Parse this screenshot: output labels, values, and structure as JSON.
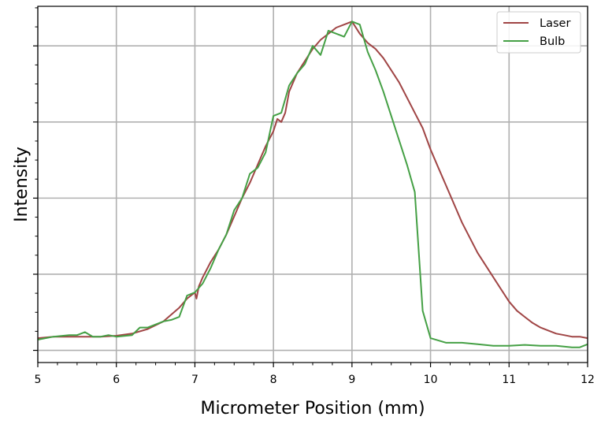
{
  "chart_data": {
    "type": "line",
    "title": "",
    "xlabel": "Micrometer Position (mm)",
    "ylabel": "Intensity",
    "xlim": [
      5,
      12
    ],
    "ylim": [
      -0.04,
      1.13
    ],
    "x_ticks": [
      5,
      6,
      7,
      8,
      9,
      10,
      11,
      12
    ],
    "y_ticks_labeled": false,
    "grid": true,
    "legend_position": "top-right",
    "series": [
      {
        "name": "Laser",
        "color": "#a04545",
        "x": [
          5.0,
          5.2,
          5.4,
          5.6,
          5.8,
          6.0,
          6.2,
          6.4,
          6.6,
          6.8,
          6.9,
          7.0,
          7.02,
          7.05,
          7.1,
          7.2,
          7.3,
          7.4,
          7.5,
          7.6,
          7.7,
          7.8,
          7.9,
          8.0,
          8.05,
          8.1,
          8.15,
          8.2,
          8.3,
          8.4,
          8.5,
          8.6,
          8.7,
          8.8,
          8.9,
          9.0,
          9.1,
          9.2,
          9.3,
          9.4,
          9.5,
          9.6,
          9.7,
          9.8,
          9.9,
          10.0,
          10.1,
          10.2,
          10.3,
          10.4,
          10.5,
          10.6,
          10.7,
          10.8,
          10.9,
          11.0,
          11.1,
          11.2,
          11.3,
          11.4,
          11.5,
          11.6,
          11.7,
          11.8,
          11.9,
          12.0
        ],
        "y": [
          0.04,
          0.045,
          0.045,
          0.045,
          0.045,
          0.048,
          0.055,
          0.07,
          0.095,
          0.14,
          0.17,
          0.19,
          0.17,
          0.21,
          0.24,
          0.29,
          0.33,
          0.38,
          0.44,
          0.5,
          0.55,
          0.61,
          0.67,
          0.72,
          0.76,
          0.75,
          0.78,
          0.85,
          0.91,
          0.95,
          0.99,
          1.02,
          1.04,
          1.06,
          1.07,
          1.08,
          1.04,
          1.01,
          0.99,
          0.96,
          0.92,
          0.88,
          0.83,
          0.78,
          0.73,
          0.66,
          0.6,
          0.54,
          0.48,
          0.42,
          0.37,
          0.32,
          0.28,
          0.24,
          0.2,
          0.16,
          0.13,
          0.11,
          0.09,
          0.075,
          0.065,
          0.055,
          0.05,
          0.045,
          0.045,
          0.04
        ]
      },
      {
        "name": "Bulb",
        "color": "#45a045",
        "x": [
          5.0,
          5.2,
          5.4,
          5.5,
          5.6,
          5.7,
          5.8,
          5.9,
          6.0,
          6.2,
          6.3,
          6.4,
          6.5,
          6.6,
          6.7,
          6.8,
          6.9,
          7.0,
          7.1,
          7.2,
          7.3,
          7.4,
          7.5,
          7.6,
          7.7,
          7.8,
          7.9,
          8.0,
          8.1,
          8.2,
          8.3,
          8.4,
          8.5,
          8.6,
          8.7,
          8.9,
          9.0,
          9.1,
          9.2,
          9.3,
          9.4,
          9.5,
          9.6,
          9.7,
          9.8,
          9.9,
          10.0,
          10.2,
          10.4,
          10.6,
          10.8,
          11.0,
          11.2,
          11.4,
          11.6,
          11.8,
          11.9,
          12.0
        ],
        "y": [
          0.035,
          0.045,
          0.05,
          0.05,
          0.06,
          0.045,
          0.045,
          0.05,
          0.045,
          0.05,
          0.075,
          0.075,
          0.085,
          0.095,
          0.1,
          0.11,
          0.18,
          0.19,
          0.22,
          0.27,
          0.33,
          0.38,
          0.46,
          0.5,
          0.58,
          0.6,
          0.65,
          0.77,
          0.78,
          0.87,
          0.91,
          0.94,
          1.0,
          0.97,
          1.05,
          1.03,
          1.08,
          1.07,
          0.98,
          0.92,
          0.85,
          0.77,
          0.69,
          0.61,
          0.52,
          0.13,
          0.04,
          0.025,
          0.025,
          0.02,
          0.015,
          0.015,
          0.018,
          0.015,
          0.015,
          0.01,
          0.01,
          0.02
        ]
      }
    ]
  }
}
